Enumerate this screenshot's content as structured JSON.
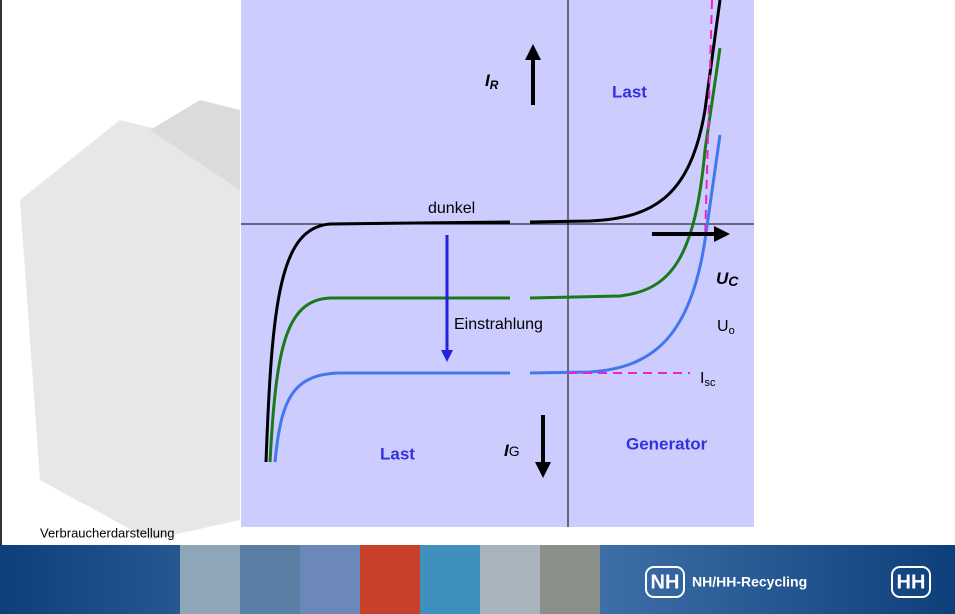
{
  "diagram": {
    "quadrant_labels": {
      "top_right": "Last",
      "bottom_left": "Last",
      "bottom_right": "Generator"
    },
    "current_reverse": {
      "main": "I",
      "sub": "R"
    },
    "current_generated": {
      "main": "I",
      "sub": "G"
    },
    "voltage": {
      "main": "U",
      "sub": "C"
    },
    "open_circuit": {
      "main": "U",
      "sub": "o"
    },
    "short_circuit": {
      "main": "I",
      "sub": "sc"
    },
    "curve_dark": "dunkel",
    "irradiation": "Einstrahlung"
  },
  "caption": "Verbraucherdarstellung",
  "footer": {
    "logo_left": "NH",
    "brand": "NH/HH-Recycling",
    "logo_right": "HH"
  }
}
